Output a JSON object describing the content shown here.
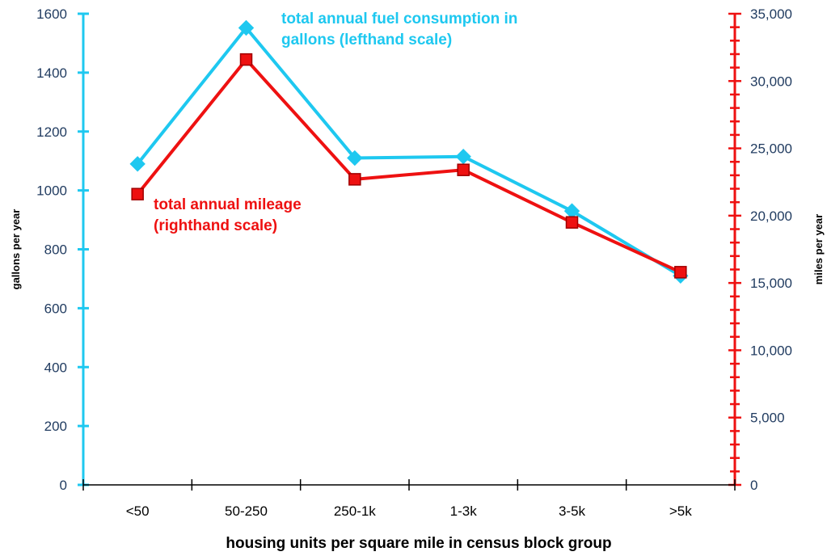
{
  "chart_data": {
    "type": "line",
    "categories": [
      "<50",
      "50-250",
      "250-1k",
      "1-3k",
      "3-5k",
      ">5k"
    ],
    "xlabel": "housing units per square mile in census block group",
    "ylabel_left": "gallons per year",
    "ylabel_right": "miles per year",
    "ylim_left": [
      0,
      1600
    ],
    "ylim_right": [
      0,
      35000
    ],
    "yticks_left": [
      "0",
      "200",
      "400",
      "600",
      "800",
      "1000",
      "1200",
      "1400",
      "1600"
    ],
    "yticks_right": [
      "0",
      "5,000",
      "10,000",
      "15,000",
      "20,000",
      "25,000",
      "30,000",
      "35,000"
    ],
    "grid": false,
    "legend": "none",
    "series": [
      {
        "label_lines": [
          "total annual fuel consumption in",
          "gallons (lefthand scale)"
        ],
        "axis": "left",
        "marker": "diamond",
        "color": "#1ec8f0",
        "values": [
          1090,
          1552,
          1110,
          1115,
          930,
          710
        ]
      },
      {
        "label_lines": [
          "total annual mileage",
          "(righthand scale)"
        ],
        "axis": "right",
        "marker": "square",
        "color": "#ee1111",
        "values": [
          21600,
          31600,
          22700,
          23400,
          19500,
          15800
        ]
      }
    ],
    "colors": {
      "left_axis": "#1ec8f0",
      "right_axis": "#ee1111",
      "x_axis": "#000000",
      "tick_text": "#1f3a5f"
    }
  }
}
